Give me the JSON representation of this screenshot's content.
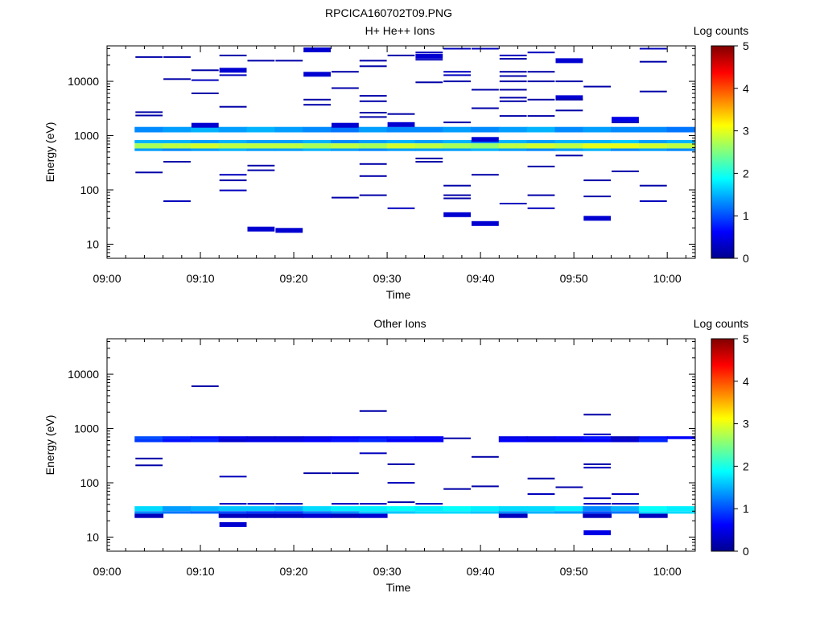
{
  "figure_title": "RPCICA160702T09.PNG",
  "colorbar_title": "Log counts",
  "colors": {
    "background": "#ffffff",
    "axes": "#000000"
  },
  "chart_data": [
    {
      "type": "heatmap",
      "title": "H+ He++ Ions",
      "xlabel": "Time",
      "ylabel": "Energy (eV)",
      "y_scale": "log",
      "ylim": [
        5.5,
        45000
      ],
      "xlim": [
        "09:00",
        "10:03"
      ],
      "x_ticks": [
        "09:00",
        "09:10",
        "09:20",
        "09:30",
        "09:40",
        "09:50",
        "10:00"
      ],
      "y_ticks": [
        {
          "value": 10,
          "label": "10"
        },
        {
          "value": 100,
          "label": "100"
        },
        {
          "value": 1000,
          "label": "1000"
        },
        {
          "value": 10000,
          "label": "10000"
        }
      ],
      "colorbar": {
        "label": "Log counts",
        "range": [
          0,
          5
        ],
        "ticks": [
          "0",
          "1",
          "2",
          "3",
          "4",
          "5"
        ]
      },
      "time_bins": [
        "09:03",
        "09:06",
        "09:09",
        "09:12",
        "09:15",
        "09:18",
        "09:21",
        "09:24",
        "09:27",
        "09:30",
        "09:33",
        "09:36",
        "09:39",
        "09:42",
        "09:45",
        "09:48",
        "09:51",
        "09:54",
        "09:57",
        "10:00"
      ],
      "bands": [
        {
          "emin": 1150,
          "emax": 1450,
          "values": [
            1.3,
            1.4,
            1.5,
            1.4,
            1.5,
            1.4,
            1.3,
            1.2,
            1.4,
            1.3,
            1.3,
            1.4,
            1.3,
            1.4,
            1.5,
            1.3,
            1.4,
            1.3,
            1.3,
            1.2
          ]
        },
        {
          "emin": 720,
          "emax": 830,
          "values": [
            1.5,
            1.5,
            1.4,
            1.5,
            1.4,
            1.4,
            1.5,
            1.3,
            1.4,
            1.5,
            1.4,
            1.5,
            1.3,
            1.5,
            1.4,
            1.5,
            1.5,
            1.6,
            1.4,
            1.5
          ]
        },
        {
          "emin": 580,
          "emax": 720,
          "values": [
            2.7,
            2.8,
            2.9,
            2.8,
            2.8,
            2.8,
            2.7,
            2.8,
            2.7,
            2.9,
            2.8,
            2.7,
            2.6,
            2.8,
            2.9,
            2.8,
            3.0,
            3.0,
            2.9,
            2.8
          ]
        },
        {
          "emin": 520,
          "emax": 580,
          "values": [
            1.4,
            1.3,
            1.4,
            1.5,
            1.4,
            1.4,
            1.5,
            1.4,
            1.3,
            1.4,
            1.4,
            1.4,
            1.5,
            1.4,
            1.3,
            1.4,
            1.5,
            1.3,
            1.4,
            1.3
          ]
        }
      ],
      "sparse": [
        [
          0,
          28000,
          0.2
        ],
        [
          0,
          2700,
          0.2
        ],
        [
          0,
          2350,
          0.2
        ],
        [
          0,
          210,
          0.2
        ],
        [
          1,
          28000,
          0.2
        ],
        [
          1,
          11000,
          0.2
        ],
        [
          1,
          330,
          0.2
        ],
        [
          1,
          62,
          0.3
        ],
        [
          2,
          16000,
          0.2
        ],
        [
          2,
          10500,
          0.3
        ],
        [
          2,
          6000,
          0.2
        ],
        [
          2,
          1550,
          0.4
        ],
        [
          3,
          30000,
          0.2
        ],
        [
          3,
          16000,
          0.4
        ],
        [
          3,
          13000,
          0.3
        ],
        [
          3,
          3400,
          0.2
        ],
        [
          3,
          190,
          0.3
        ],
        [
          3,
          150,
          0.2
        ],
        [
          3,
          98,
          0.3
        ],
        [
          4,
          24000,
          0.2
        ],
        [
          4,
          280,
          0.2
        ],
        [
          4,
          230,
          0.2
        ],
        [
          4,
          19,
          0.4
        ],
        [
          5,
          24000,
          0.2
        ],
        [
          5,
          18,
          0.4
        ],
        [
          6,
          38000,
          0.4
        ],
        [
          6,
          13500,
          0.4
        ],
        [
          6,
          4600,
          0.2
        ],
        [
          6,
          3700,
          0.2
        ],
        [
          7,
          15000,
          0.2
        ],
        [
          7,
          7500,
          0.2
        ],
        [
          7,
          1550,
          0.4
        ],
        [
          7,
          72,
          0.2
        ],
        [
          8,
          24000,
          0.2
        ],
        [
          8,
          19000,
          0.2
        ],
        [
          8,
          5400,
          0.2
        ],
        [
          8,
          4300,
          0.2
        ],
        [
          8,
          2650,
          0.2
        ],
        [
          8,
          2200,
          0.2
        ],
        [
          8,
          300,
          0.2
        ],
        [
          8,
          180,
          0.2
        ],
        [
          8,
          80,
          0.2
        ],
        [
          9,
          30000,
          0.2
        ],
        [
          9,
          2500,
          0.2
        ],
        [
          9,
          1600,
          0.4
        ],
        [
          9,
          46,
          0.3
        ],
        [
          10,
          34000,
          0.3
        ],
        [
          10,
          29000,
          0.4
        ],
        [
          10,
          25000,
          0.3
        ],
        [
          10,
          9600,
          0.2
        ],
        [
          10,
          380,
          0.2
        ],
        [
          10,
          330,
          0.2
        ],
        [
          11,
          40000,
          0.3
        ],
        [
          11,
          15000,
          0.3
        ],
        [
          11,
          13000,
          0.3
        ],
        [
          11,
          10000,
          0.2
        ],
        [
          11,
          1750,
          0.2
        ],
        [
          11,
          120,
          0.2
        ],
        [
          11,
          80,
          0.2
        ],
        [
          11,
          70,
          0.2
        ],
        [
          11,
          35,
          0.4
        ],
        [
          12,
          40000,
          0.3
        ],
        [
          12,
          7000,
          0.2
        ],
        [
          12,
          3200,
          0.2
        ],
        [
          12,
          850,
          0.4
        ],
        [
          12,
          190,
          0.2
        ],
        [
          12,
          24,
          0.4
        ],
        [
          13,
          30000,
          0.3
        ],
        [
          13,
          26000,
          0.2
        ],
        [
          13,
          15000,
          0.2
        ],
        [
          13,
          12500,
          0.2
        ],
        [
          13,
          10000,
          0.2
        ],
        [
          13,
          7000,
          0.2
        ],
        [
          13,
          5000,
          0.2
        ],
        [
          13,
          4300,
          0.2
        ],
        [
          13,
          2300,
          0.2
        ],
        [
          13,
          56,
          0.3
        ],
        [
          14,
          34000,
          0.3
        ],
        [
          14,
          15000,
          0.2
        ],
        [
          14,
          10000,
          0.2
        ],
        [
          14,
          4600,
          0.2
        ],
        [
          14,
          2300,
          0.2
        ],
        [
          14,
          270,
          0.2
        ],
        [
          14,
          80,
          0.2
        ],
        [
          14,
          46,
          0.3
        ],
        [
          15,
          24000,
          0.4
        ],
        [
          15,
          10000,
          0.2
        ],
        [
          15,
          5000,
          0.4
        ],
        [
          15,
          4600,
          0.2
        ],
        [
          15,
          2900,
          0.2
        ],
        [
          15,
          430,
          0.2
        ],
        [
          16,
          8000,
          0.2
        ],
        [
          16,
          150,
          0.2
        ],
        [
          16,
          76,
          0.2
        ],
        [
          16,
          30,
          0.4
        ],
        [
          17,
          2000,
          0.5
        ],
        [
          17,
          1750,
          0.3
        ],
        [
          17,
          220,
          0.2
        ],
        [
          18,
          40000,
          0.3
        ],
        [
          18,
          23000,
          0.2
        ],
        [
          18,
          6500,
          0.2
        ],
        [
          18,
          120,
          0.2
        ],
        [
          18,
          62,
          0.3
        ]
      ]
    },
    {
      "type": "heatmap",
      "title": "Other Ions",
      "xlabel": "Time",
      "ylabel": "Energy (eV)",
      "y_scale": "log",
      "ylim": [
        5.5,
        45000
      ],
      "xlim": [
        "09:00",
        "10:03"
      ],
      "x_ticks": [
        "09:00",
        "09:10",
        "09:20",
        "09:30",
        "09:40",
        "09:50",
        "10:00"
      ],
      "y_ticks": [
        {
          "value": 10,
          "label": "10"
        },
        {
          "value": 100,
          "label": "100"
        },
        {
          "value": 1000,
          "label": "1000"
        },
        {
          "value": 10000,
          "label": "10000"
        }
      ],
      "colorbar": {
        "label": "Log counts",
        "range": [
          0,
          5
        ],
        "ticks": [
          "0",
          "1",
          "2",
          "3",
          "4",
          "5"
        ]
      },
      "time_bins": [
        "09:03",
        "09:06",
        "09:09",
        "09:12",
        "09:15",
        "09:18",
        "09:21",
        "09:24",
        "09:27",
        "09:30",
        "09:33",
        "09:36",
        "09:39",
        "09:42",
        "09:45",
        "09:48",
        "09:51",
        "09:54",
        "09:57",
        "10:00"
      ],
      "bands": [
        {
          "emin": 640,
          "emax": 720,
          "values": [
            1.0,
            0.8,
            0.7,
            0.5,
            0.4,
            0.4,
            0.5,
            0.6,
            0.7,
            0.7,
            0.6,
            null,
            null,
            0.5,
            0.5,
            0.6,
            0.7,
            0.3,
            0.7,
            0.6
          ]
        },
        {
          "emin": 560,
          "emax": 640,
          "values": [
            0.9,
            0.7,
            0.8,
            0.4,
            0.5,
            0.5,
            0.6,
            0.7,
            0.8,
            0.6,
            0.6,
            null,
            null,
            0.6,
            0.5,
            0.5,
            0.6,
            0.4,
            0.8,
            null
          ]
        },
        {
          "emin": 30,
          "emax": 37,
          "values": [
            1.7,
            1.4,
            1.5,
            1.6,
            1.6,
            1.5,
            1.7,
            1.8,
            1.8,
            1.9,
            1.8,
            1.9,
            1.8,
            1.7,
            1.7,
            1.8,
            1.3,
            1.5,
            1.9,
            1.8
          ]
        },
        {
          "emin": 27,
          "emax": 30,
          "values": [
            1.3,
            1.2,
            1.1,
            1.0,
            0.9,
            0.9,
            1.2,
            1.3,
            1.6,
            1.6,
            1.7,
            1.7,
            1.6,
            1.3,
            1.5,
            1.4,
            1.0,
            1.2,
            1.7,
            1.7
          ]
        },
        {
          "emin": 22.5,
          "emax": 27,
          "values": [
            0.3,
            null,
            null,
            0.3,
            0.3,
            0.3,
            0.4,
            0.3,
            0.4,
            null,
            null,
            null,
            null,
            0.3,
            null,
            null,
            0.3,
            null,
            0.3,
            null
          ]
        }
      ],
      "sparse": [
        [
          0,
          280,
          0.2
        ],
        [
          0,
          210,
          0.2
        ],
        [
          2,
          6000,
          0.2
        ],
        [
          3,
          130,
          0.3
        ],
        [
          3,
          41,
          0.3
        ],
        [
          3,
          17,
          0.4
        ],
        [
          4,
          41,
          0.3
        ],
        [
          5,
          41,
          0.3
        ],
        [
          6,
          150,
          0.2
        ],
        [
          7,
          150,
          0.2
        ],
        [
          7,
          41,
          0.3
        ],
        [
          8,
          2100,
          0.2
        ],
        [
          8,
          350,
          0.3
        ],
        [
          8,
          41,
          0.3
        ],
        [
          9,
          220,
          0.2
        ],
        [
          9,
          100,
          0.3
        ],
        [
          9,
          44,
          0.2
        ],
        [
          10,
          41,
          0.3
        ],
        [
          11,
          77,
          0.2
        ],
        [
          11,
          660,
          0.2
        ],
        [
          12,
          300,
          0.2
        ],
        [
          12,
          86,
          0.2
        ],
        [
          14,
          120,
          0.2
        ],
        [
          14,
          62,
          0.3
        ],
        [
          15,
          83,
          0.2
        ],
        [
          16,
          1800,
          0.2
        ],
        [
          16,
          780,
          0.3
        ],
        [
          16,
          220,
          0.2
        ],
        [
          16,
          190,
          0.3
        ],
        [
          16,
          52,
          0.3
        ],
        [
          16,
          41,
          0.3
        ],
        [
          16,
          12,
          0.5
        ],
        [
          17,
          62,
          0.3
        ],
        [
          17,
          41,
          0.3
        ]
      ]
    }
  ]
}
